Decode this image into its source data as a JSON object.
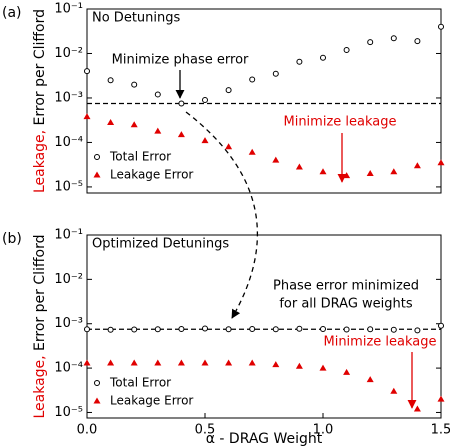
{
  "chart_data": [
    {
      "type": "scatter",
      "panel_label": "(a)",
      "title": "No Detunings",
      "ylabel_parts": [
        {
          "text": "Leakage,",
          "color": "#e00000"
        },
        {
          "text": " Error per Clifford",
          "color": "#000000"
        }
      ],
      "xlim": [
        0,
        1.5
      ],
      "ylim": [
        7.3e-06,
        0.1
      ],
      "log_y": true,
      "yticks": [
        {
          "value": 0.1,
          "label": "10⁻¹"
        },
        {
          "value": 0.01,
          "label": "10⁻²"
        },
        {
          "value": 0.001,
          "label": "10⁻³"
        },
        {
          "value": 0.0001,
          "label": "10⁻⁴"
        },
        {
          "value": 1e-05,
          "label": "10⁻⁵"
        }
      ],
      "x": [
        0,
        0.1,
        0.2,
        0.3,
        0.4,
        0.5,
        0.6,
        0.7,
        0.8,
        0.9,
        1.0,
        1.1,
        1.2,
        1.3,
        1.4,
        1.5
      ],
      "series": [
        {
          "name": "Total Error",
          "color": "#000000",
          "marker": "circle",
          "values": [
            0.004,
            0.0025,
            0.002,
            0.0012,
            0.00075,
            0.0009,
            0.0015,
            0.0026,
            0.0035,
            0.0065,
            0.008,
            0.012,
            0.018,
            0.022,
            0.019,
            0.04
          ]
        },
        {
          "name": "Leakage Error",
          "color": "#e00000",
          "marker": "triangle",
          "values": [
            0.00038,
            0.00028,
            0.00025,
            0.00018,
            0.00015,
            0.00011,
            8e-05,
            6e-05,
            4e-05,
            2.8e-05,
            2.2e-05,
            1.8e-05,
            2e-05,
            2.2e-05,
            3e-05,
            3.5e-05
          ]
        }
      ],
      "reference_line": 0.00075,
      "annotations": [
        {
          "text": "Minimize phase error",
          "color": "#000000"
        },
        {
          "text": "Minimize leakage",
          "color": "#e00000"
        }
      ]
    },
    {
      "type": "scatter",
      "panel_label": "(b)",
      "title": "Optimized Detunings",
      "ylabel_parts": [
        {
          "text": "Leakage,",
          "color": "#e00000"
        },
        {
          "text": " Error per Clifford",
          "color": "#000000"
        }
      ],
      "xlabel": "α - DRAG Weight",
      "xlim": [
        0,
        1.5
      ],
      "ylim": [
        7.5e-06,
        0.1
      ],
      "log_y": true,
      "xticks": [
        {
          "value": 0,
          "label": "0.0"
        },
        0.5,
        {
          "value": 1,
          "label": "1.0"
        },
        1.5
      ],
      "yticks": [
        {
          "value": 0.1,
          "label": "10⁻¹"
        },
        {
          "value": 0.01,
          "label": "10⁻²"
        },
        {
          "value": 0.001,
          "label": "10⁻³"
        },
        {
          "value": 0.0001,
          "label": "10⁻⁴"
        },
        {
          "value": 1e-05,
          "label": "10⁻⁵"
        }
      ],
      "x": [
        0,
        0.1,
        0.2,
        0.3,
        0.4,
        0.5,
        0.6,
        0.7,
        0.8,
        0.9,
        1.0,
        1.1,
        1.2,
        1.3,
        1.4,
        1.5
      ],
      "series": [
        {
          "name": "Total Error",
          "color": "#000000",
          "marker": "circle",
          "values": [
            0.00075,
            0.00073,
            0.00074,
            0.00075,
            0.00076,
            0.00078,
            0.00075,
            0.00076,
            0.00075,
            0.00077,
            0.00076,
            0.00074,
            0.00075,
            0.00073,
            0.00071,
            0.0009
          ]
        },
        {
          "name": "Leakage Error",
          "color": "#e00000",
          "marker": "triangle",
          "values": [
            0.00013,
            0.00013,
            0.00013,
            0.00013,
            0.00013,
            0.00013,
            0.00013,
            0.00013,
            0.00012,
            0.00011,
            0.0001,
            8e-05,
            5.5e-05,
            3e-05,
            1.2e-05,
            2e-05
          ]
        }
      ],
      "reference_line": 0.00075,
      "annotations": [
        {
          "text": "Phase error minimized",
          "color": "#000000"
        },
        {
          "text": "for all DRAG weights",
          "color": "#000000"
        },
        {
          "text": "Minimize leakage",
          "color": "#e00000"
        }
      ]
    }
  ]
}
